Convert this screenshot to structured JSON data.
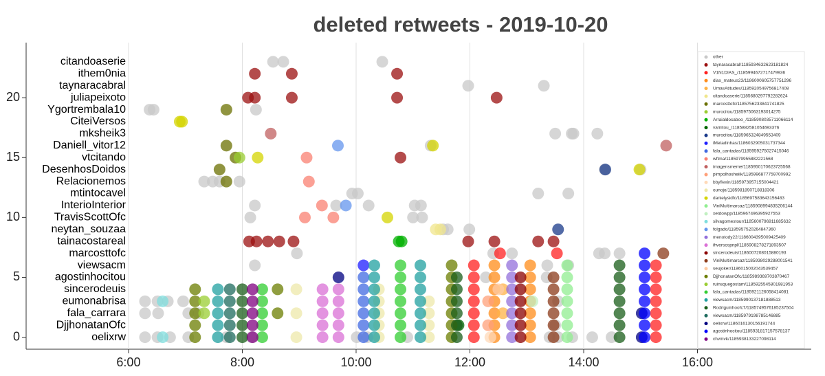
{
  "chart_data": {
    "type": "scatter",
    "title": "deleted retweets - 2019-10-20",
    "xlim": [
      4.2,
      18
    ],
    "ylim": [
      -1,
      24.6
    ],
    "xticks": [
      {
        "value": 6,
        "label": "6:00"
      },
      {
        "value": 8,
        "label": "8:00"
      },
      {
        "value": 10,
        "label": "10:00"
      },
      {
        "value": 12,
        "label": "12:00"
      },
      {
        "value": 14,
        "label": "14:00"
      },
      {
        "value": 16,
        "label": "16:00"
      }
    ],
    "yticks": [
      0,
      5,
      10,
      15,
      20
    ],
    "grid": true,
    "legend": "upper right",
    "y_categories": [
      "oelixrw",
      "DjjhonatanOfc",
      "fala_carrara",
      "eumonabrisa",
      "sincerodeuis",
      "agostinhocitou",
      "viewsacm",
      "marcosttofc",
      "tainacostareal",
      "neytan_souzaa",
      "TravisScottOfc",
      "InterioInterior",
      "mtintocavel",
      "Relacionemos",
      "DesenhosDoidos",
      "vtcitando",
      "Daniell_vitor12",
      "mksheik3",
      "CiteiVersos",
      "Ygortrembala10",
      "juliapeixoto",
      "taynaracabral",
      "ithem0nia",
      "citandoaserie"
    ],
    "series": [
      {
        "name": "other",
        "color": "#c8c8c8",
        "x": [
          8.54,
          8.72,
          10.46,
          11.97,
          13.3,
          6.37,
          6.44,
          8.24,
          13.5,
          13.79,
          13.82,
          14.24,
          11.31,
          14.37,
          15.0,
          7.33,
          7.48,
          7.6,
          7.95,
          9.93,
          10.03,
          13.2,
          13.73,
          8.22,
          9.65,
          10.22,
          11.03,
          11.14,
          8.14,
          11.0,
          11.16,
          11.99,
          11.53,
          11.61,
          8.96,
          12.41,
          12.74,
          14.27,
          14.37,
          14.63,
          8.22,
          13.36,
          13.73,
          6.29,
          6.51,
          6.69,
          6.96,
          6.29,
          6.52,
          7.05,
          7.23,
          6.29,
          6.51,
          6.73,
          7.05,
          7.72,
          8.16,
          10.01,
          10.2,
          10.9,
          13.4,
          13.55,
          13.8,
          14.15,
          14.49,
          13.5,
          13.55,
          12.28,
          13.35
        ],
        "values": [
          23,
          23,
          23,
          21,
          21,
          19,
          19,
          19,
          17,
          17,
          17,
          17,
          16,
          14,
          14,
          13,
          13,
          13,
          13,
          12,
          12,
          12,
          12,
          11,
          11,
          11,
          11,
          11,
          10,
          10,
          10,
          9,
          9,
          9,
          7,
          7,
          7,
          7,
          7,
          7,
          6,
          6,
          6,
          3,
          3,
          3,
          3,
          2,
          2,
          2,
          2,
          0,
          0,
          0,
          0,
          0,
          0,
          0,
          0,
          0,
          0,
          0,
          0,
          0,
          0,
          1,
          3,
          5,
          5
        ]
      },
      {
        "name": "taynaracabral/1185934632623181824",
        "color": "#9b1010",
        "x": [
          8.22,
          8.87,
          10.72,
          8.1,
          8.22,
          8.87,
          10.72,
          12.47,
          8.12,
          8.25,
          8.45,
          8.65,
          8.9,
          11.97,
          12.43,
          13.2,
          13.47,
          10.78
        ],
        "values": [
          22,
          22,
          22,
          20,
          20,
          20,
          20,
          20,
          8,
          8,
          8,
          8,
          8,
          8,
          8,
          8,
          8,
          15
        ]
      },
      {
        "name": "V1N1DIAS_/1185994672717479936",
        "color": "#ff2020",
        "x": [
          12.07,
          12.07,
          12.07,
          12.07,
          12.07,
          12.07,
          12.07,
          15.27,
          15.27,
          15.27,
          15.27,
          15.27,
          15.27,
          15.27,
          12.53,
          13.53
        ],
        "values": [
          0,
          1,
          2,
          3,
          4,
          5,
          6,
          0,
          1,
          2,
          3,
          4,
          5,
          6,
          7,
          7
        ]
      },
      {
        "name": "dias_mateus23/1186000605757751296",
        "color": "#ff8c1a",
        "x": [
          12.43,
          12.43,
          12.43,
          12.43,
          12.43,
          12.43,
          12.43,
          13.06,
          13.06,
          13.06,
          13.06,
          13.06,
          13.06,
          13.06
        ],
        "values": [
          0,
          1,
          2,
          3,
          4,
          5,
          6,
          0,
          1,
          2,
          3,
          4,
          5,
          6
        ]
      },
      {
        "name": "UmasAtitudes/1185920549756817408",
        "color": "#ffb347",
        "x": [
          12.58,
          12.58
        ],
        "values": [
          4,
          2
        ]
      },
      {
        "name": "citandoaserie/1185680297792282624",
        "color": "#f0e68c",
        "x": [
          11.4,
          11.48
        ],
        "values": [
          9,
          9
        ]
      },
      {
        "name": "marcosttofc/1185756233841741825",
        "color": "#6b7000",
        "x": [
          7.72,
          7.72,
          7.6,
          7.72,
          7.88
        ],
        "values": [
          19,
          16,
          14,
          13,
          15
        ]
      },
      {
        "name": "murocitou/1185975063193014275",
        "color": "#9acd32",
        "x": [
          7.95
        ],
        "values": [
          15
        ]
      },
      {
        "name": "Arraialdocaboo_/1185908035711066114",
        "color": "#00b000",
        "x": [
          10.75,
          10.8
        ],
        "values": [
          8,
          8
        ]
      },
      {
        "name": "vamitou_/1185882581054693376",
        "color": "#006400",
        "x": [
          11.8
        ],
        "values": [
          1
        ]
      },
      {
        "name": "murocitou/1185965324849553409",
        "color": "#1a3a8a",
        "x": [
          14.38,
          13.55
        ],
        "values": [
          14,
          9
        ]
      },
      {
        "name": "iMetadinhas/1186032905031737344",
        "color": "#1e1eff",
        "x": [
          10.13
        ],
        "values": [
          6
        ]
      },
      {
        "name": "fala_cantadas/1185959275027415046",
        "color": "#4169e1",
        "x": [
          10.13,
          10.13,
          10.13,
          10.13,
          10.13,
          10.13
        ],
        "values": [
          0,
          1,
          2,
          3,
          4,
          5
        ]
      },
      {
        "name": "wftma/1185979955882221568",
        "color": "#fa8072",
        "x": [
          9.4,
          9.1,
          9.6,
          9.13,
          9.17
        ],
        "values": [
          11,
          10,
          10,
          15,
          13
        ]
      },
      {
        "name": "imagensmeme/1185950170623725568",
        "color": "#c06060",
        "x": [
          8.5,
          15.45
        ],
        "values": [
          17,
          16
        ]
      },
      {
        "name": "pimpolhosheiik/1185996877759700992",
        "color": "#ffa07a",
        "x": [
          12.32,
          12.32
        ],
        "values": [
          3,
          1
        ]
      },
      {
        "name": "bbyflexin/1185973957155004421",
        "color": "#ffdab9",
        "x": [
          12.36
        ],
        "values": [
          0
        ]
      },
      {
        "name": "ounojo/1185981890718818306",
        "color": "#eee8aa",
        "x": [
          8.95,
          8.95,
          8.95,
          10.4,
          10.4,
          10.4,
          10.4,
          10.4,
          11.28,
          11.28,
          11.28,
          11.28
        ],
        "values": [
          0,
          2,
          4,
          0,
          1,
          2,
          3,
          4,
          0,
          1,
          2,
          3
        ]
      },
      {
        "name": "danielysidfc/1185697583643156483",
        "color": "#d4d400",
        "x": [
          6.9,
          6.94,
          8.27,
          14.98,
          10.55,
          11.35
        ],
        "values": [
          18,
          18,
          15,
          14,
          10,
          16
        ]
      },
      {
        "name": "ViniMultimarcaz/1185908994835206144",
        "color": "#90ee90",
        "x": [
          13.71,
          13.71,
          13.71,
          13.71,
          13.71,
          13.71,
          13.71
        ],
        "values": [
          0,
          1,
          2,
          3,
          4,
          5,
          6
        ]
      },
      {
        "name": "xetdowpp/1185967496395927553",
        "color": "#c1f0c1",
        "x": [
          13.1
        ],
        "values": [
          3
        ]
      },
      {
        "name": "silvagomestour/1185600796911685632",
        "color": "#7fdede",
        "x": [
          6.6,
          6.6
        ],
        "values": [
          0,
          3
        ]
      },
      {
        "name": "folgado/1185957520264847360",
        "color": "#6495ed",
        "x": [
          9.68,
          9.82
        ],
        "values": [
          16,
          11
        ]
      },
      {
        "name": "menotody22/1186004395009425409",
        "color": "#9370db",
        "x": [
          12.74,
          12.74,
          12.74,
          12.74,
          12.74,
          12.74,
          12.74
        ],
        "values": [
          0,
          1,
          2,
          3,
          4,
          5,
          6
        ]
      },
      {
        "name": "ihversospnpl/1185908278271893507",
        "color": "#da70d6",
        "x": [
          9.41,
          9.41,
          9.41,
          9.41,
          9.41,
          9.69,
          9.69,
          9.69,
          9.69,
          9.69
        ],
        "values": [
          0,
          1,
          2,
          3,
          4,
          0,
          1,
          2,
          3,
          4
        ]
      },
      {
        "name": "sincerodeuis/1186007208015880193",
        "color": "#8b0000",
        "x": [
          12.89,
          12.89,
          12.89,
          12.89,
          12.89,
          12.89
        ],
        "values": [
          0,
          1,
          2,
          3,
          4,
          5
        ]
      },
      {
        "name": "ViniMultimarcaz/1185938029288001541",
        "color": "#8b3a1a",
        "x": [
          13.47,
          13.47,
          13.47,
          13.47,
          13.47,
          13.47,
          15.4
        ],
        "values": [
          0,
          1,
          2,
          3,
          4,
          5,
          7
        ]
      },
      {
        "name": "seujoker/1186015002043539457",
        "color": "#ffcba4",
        "x": [
          12.5
        ],
        "values": [
          4
        ]
      },
      {
        "name": "DjjhonatanOfc/1185989369703870467",
        "color": "#6b7d00",
        "x": [
          7.17,
          7.17,
          7.17,
          7.17,
          7.17,
          11.68,
          11.68,
          11.68,
          11.68,
          11.68,
          11.68,
          11.68,
          8.62,
          8.62
        ],
        "values": [
          0,
          1,
          2,
          3,
          4,
          0,
          1,
          2,
          3,
          4,
          5,
          6,
          2,
          4
        ]
      },
      {
        "name": "ruinsquegostam/1185925545801981953",
        "color": "#9acd32",
        "x": [
          7.33,
          7.33
        ],
        "values": [
          2,
          3
        ]
      },
      {
        "name": "fala_cantadas/1185921126058414081",
        "color": "#32cd32",
        "x": [
          8.35,
          8.35,
          8.35,
          8.35,
          8.35,
          10.78,
          10.78,
          10.78,
          10.78,
          10.78,
          10.78,
          10.78
        ],
        "values": [
          0,
          1,
          2,
          3,
          4,
          0,
          1,
          2,
          3,
          4,
          5,
          6
        ]
      },
      {
        "name": "viewsacm/1185990137181888513",
        "color": "#20a0a0",
        "x": [
          7.57,
          7.57,
          7.57,
          7.57,
          7.57,
          11.13,
          11.13,
          11.13,
          11.13,
          11.13,
          11.13,
          11.13,
          10.32,
          10.32,
          10.32,
          10.32,
          10.32,
          10.32,
          10.32
        ],
        "values": [
          0,
          1,
          2,
          3,
          4,
          0,
          1,
          2,
          3,
          4,
          5,
          6,
          0,
          1,
          2,
          3,
          4,
          5,
          6
        ]
      },
      {
        "name": "Rodriguinhoofc7/1185749576185237504",
        "color": "#1a5e1a",
        "x": [
          8.0,
          8.0,
          8.0,
          8.0,
          8.0,
          14.63,
          14.63,
          14.63,
          14.63,
          14.63,
          14.63,
          14.63,
          11.77,
          11.77,
          11.77,
          11.77,
          11.77,
          11.77
        ],
        "values": [
          0,
          1,
          2,
          3,
          4,
          0,
          1,
          2,
          3,
          4,
          5,
          6,
          0,
          1,
          2,
          3,
          4,
          5
        ]
      },
      {
        "name": "viewsacm/1185979198785146885",
        "color": "#1e6b5e",
        "x": [
          7.78,
          7.78,
          7.78,
          7.78,
          7.78
        ],
        "values": [
          0,
          1,
          2,
          3,
          4
        ]
      },
      {
        "name": "oelixrw/1186016130156191744",
        "color": "#000080",
        "x": [
          9.69,
          15.02,
          15.02
        ],
        "values": [
          5,
          0,
          2
        ]
      },
      {
        "name": "agostinhocitou/1185931817157578137",
        "color": "#0000ff",
        "x": [
          15.07,
          15.07,
          15.07,
          15.07,
          15.07,
          15.07,
          15.07,
          15.07
        ],
        "values": [
          0,
          1,
          2,
          3,
          4,
          5,
          6,
          7
        ]
      },
      {
        "name": "chvmvk/1185938133227098114",
        "color": "#800080",
        "x": [
          8.18,
          8.18,
          8.18,
          8.18,
          8.18
        ],
        "values": [
          0,
          1,
          2,
          3,
          4
        ]
      }
    ]
  }
}
